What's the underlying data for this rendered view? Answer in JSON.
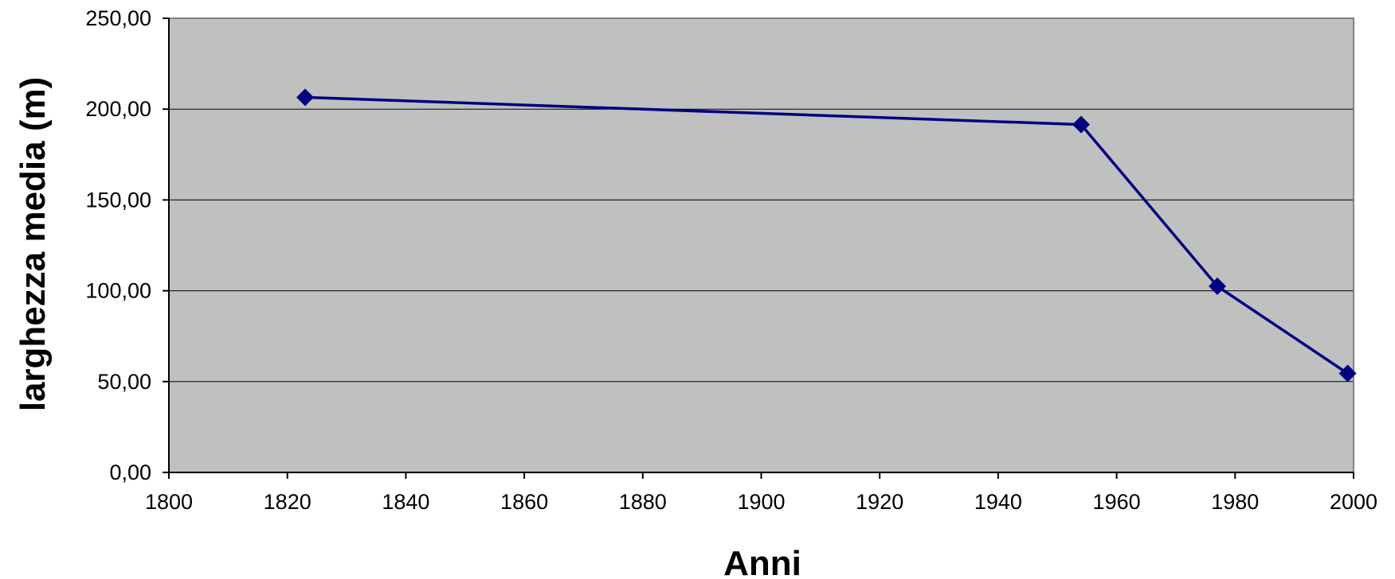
{
  "chart_data": {
    "type": "line",
    "title": "",
    "xlabel": "Anni",
    "ylabel": "larghezza media (m)",
    "xlim": [
      1800,
      2000
    ],
    "ylim": [
      0,
      250
    ],
    "x_ticks": [
      1800,
      1820,
      1840,
      1860,
      1880,
      1900,
      1920,
      1940,
      1960,
      1980,
      2000
    ],
    "x_tick_labels": [
      "1800",
      "1820",
      "1840",
      "1860",
      "1880",
      "1900",
      "1920",
      "1940",
      "1960",
      "1980",
      "2000"
    ],
    "y_ticks": [
      0,
      50,
      100,
      150,
      200,
      250
    ],
    "y_tick_labels": [
      "0,00",
      "50,00",
      "100,00",
      "150,00",
      "200,00",
      "250,00"
    ],
    "grid": true,
    "legend": "none",
    "series": [
      {
        "x": [
          1823,
          1954,
          1977,
          1999
        ],
        "values": [
          206.5,
          191.5,
          102.5,
          54.5
        ],
        "color": "#000080"
      }
    ],
    "plot_background": "#c0c0c0",
    "gridline_color": "#000000"
  }
}
